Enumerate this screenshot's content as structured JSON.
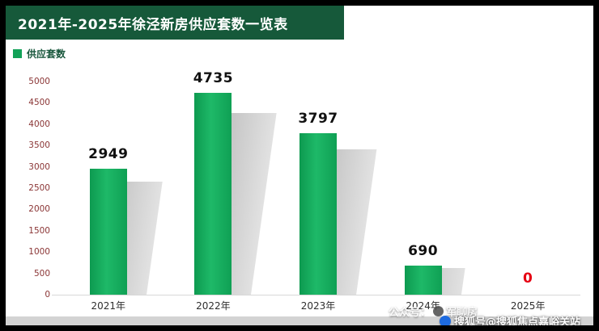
{
  "header": {
    "title": "2021年-2025年徐泾新房供应套数一览表",
    "bg_color": "#16593a",
    "text_color": "#ffffff"
  },
  "legend": {
    "label": "供应套数",
    "swatch_color": "#12a258"
  },
  "chart_data": {
    "type": "bar",
    "title": "2021年-2025年徐泾新房供应套数一览表",
    "legend_entries": [
      "供应套数"
    ],
    "legend_position": "top-left",
    "categories": [
      "2021年",
      "2022年",
      "2023年",
      "2024年",
      "2025年"
    ],
    "values": [
      2949,
      4735,
      3797,
      690,
      0
    ],
    "value_label_colors": [
      "#111111",
      "#111111",
      "#111111",
      "#111111",
      "#e60012"
    ],
    "ylim": [
      0,
      5000
    ],
    "yticks": [
      0,
      500,
      1000,
      1500,
      2000,
      2500,
      3000,
      3500,
      4000,
      4500,
      5000
    ],
    "grid": false,
    "bar_color": "#12a258",
    "shadow_color": "#c4c4c4",
    "xlabel": "",
    "ylabel": ""
  },
  "watermarks": {
    "center_prefix": "公众号：",
    "center_suffix": "军聊房",
    "right_text": "搜狐号@搜狐焦点嘉峪关站"
  }
}
